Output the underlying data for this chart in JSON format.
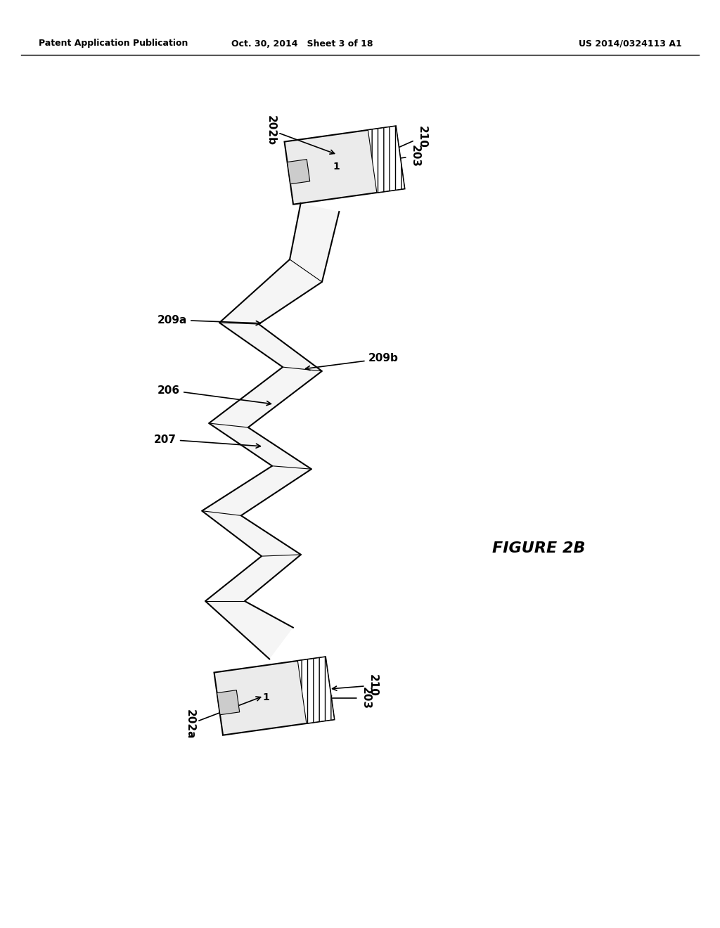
{
  "header_left": "Patent Application Publication",
  "header_center": "Oct. 30, 2014   Sheet 3 of 18",
  "header_right": "US 2014/0324113 A1",
  "figure_label": "FIGURE 2B",
  "bg_color": "#ffffff",
  "text_color": "#000000",
  "line_color": "#000000"
}
